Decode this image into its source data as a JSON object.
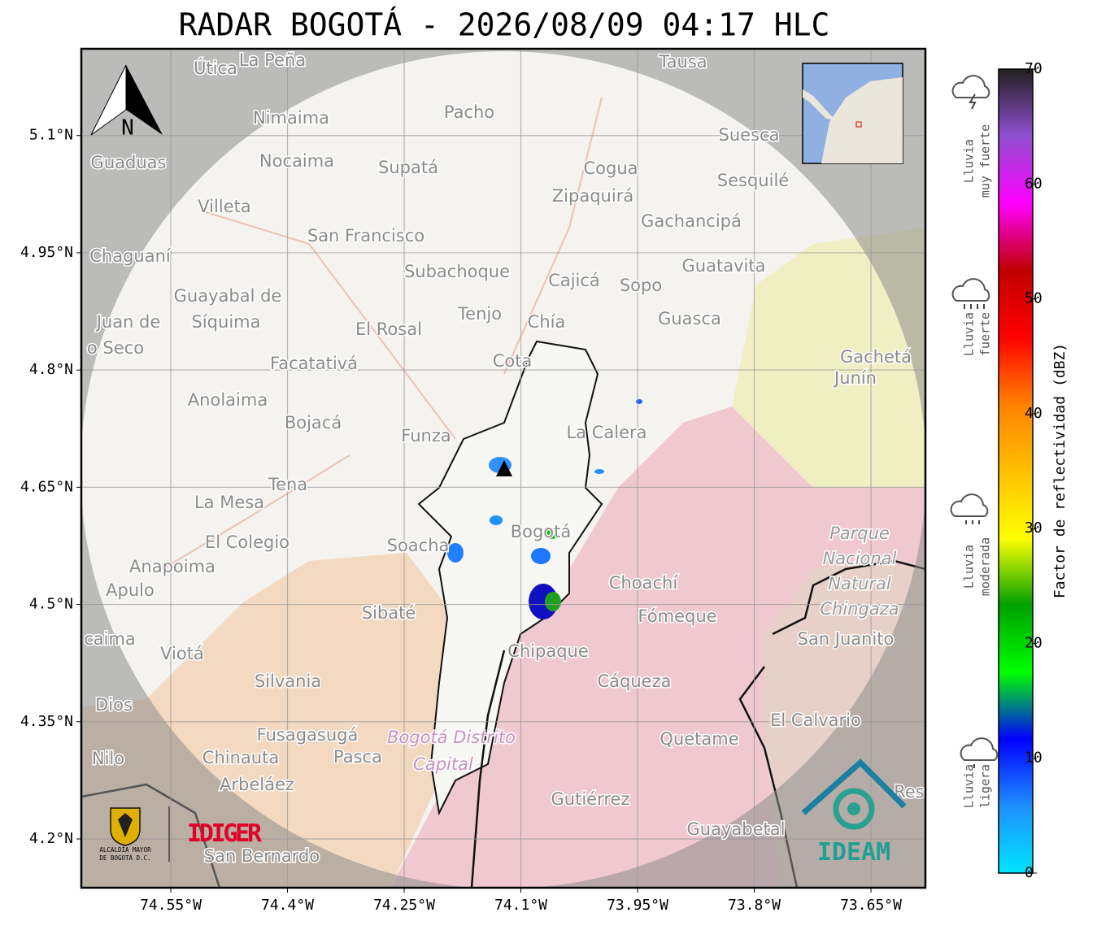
{
  "map": {
    "title": "RADAR BOGOTÁ - 2026/08/09 04:17 HLC",
    "xlim": [
      -74.665,
      -73.58
    ],
    "ylim": [
      4.1376,
      5.211
    ],
    "xticks": [
      {
        "value": -74.55,
        "label": "74.55°W"
      },
      {
        "value": -74.4,
        "label": "74.4°W"
      },
      {
        "value": -74.25,
        "label": "74.25°W"
      },
      {
        "value": -74.1,
        "label": "74.1°W"
      },
      {
        "value": -73.95,
        "label": "73.95°W"
      },
      {
        "value": -73.8,
        "label": "73.8°W"
      },
      {
        "value": -73.65,
        "label": "73.65°W"
      }
    ],
    "yticks": [
      {
        "value": 4.2,
        "label": "4.2°N"
      },
      {
        "value": 4.35,
        "label": "4.35°N"
      },
      {
        "value": 4.5,
        "label": "4.5°N"
      },
      {
        "value": 4.65,
        "label": "4.65°N"
      },
      {
        "value": 4.8,
        "label": "4.8°N"
      },
      {
        "value": 4.95,
        "label": "4.95°N"
      },
      {
        "value": 5.1,
        "label": "5.1°N"
      }
    ],
    "grid": true,
    "north": "N",
    "places": [
      "Útica",
      "La Peña",
      "Tausa",
      "Pacho",
      "Nimaima",
      "Guaduas",
      "Nocaima",
      "Supatá",
      "Cogua",
      "Suesca",
      "Sesquilé",
      "Zipaquirá",
      "Villeta",
      "Gachancipá",
      "San Francisco",
      "Chaguaní",
      "Guatavita",
      "Subachoque",
      "Cajicá",
      "Sopo",
      "Guayabal de",
      "Síquima",
      "Juan de",
      "o Seco",
      "Tenjo",
      "Chía",
      "Guasca",
      "El Rosal",
      "Facatativá",
      "Cota",
      "Gachetá",
      "Junín",
      "Anolaima",
      "Bojacá",
      "Funza",
      "La Calera",
      "Tena",
      "La Mesa",
      "El Colegio",
      "Soacha",
      "Bogotá",
      "Parque",
      "Nacional",
      "Natural",
      "Chingaza",
      "Anapoima",
      "Apulo",
      "Choachí",
      "Sibaté",
      "Fómeque",
      "San Juanito",
      "caima",
      "Viotá",
      "Chipaque",
      "Silvania",
      "Cáqueza",
      "Dios",
      "El Calvario",
      "Fusagasugá",
      "Bogotá Distrito",
      "Capital",
      "Quetame",
      "Nilo",
      "Chinauta",
      "Pasca",
      "Arbeláez",
      "Res",
      "Gutiérrez",
      "Guayabetal",
      "San Bernardo"
    ],
    "logos": {
      "alcaldia": [
        "ALCALDÍA MAYOR",
        "DE BOGOTÁ D.C."
      ],
      "idiger": "IDIGER",
      "ideam": "IDEAM"
    }
  },
  "colorbar": {
    "label": "Factor de reflectividad (dBZ)",
    "lim": [
      0,
      70
    ],
    "ticks": [
      0,
      10,
      20,
      30,
      40,
      50,
      60,
      70
    ],
    "colors": [
      "#00e5ff",
      "#1e90ff",
      "#0000ff",
      "#00ff00",
      "#00a000",
      "#ffff00",
      "#ffc000",
      "#ff8000",
      "#ff0000",
      "#c00000",
      "#ff00ff",
      "#9050d0",
      "#202020"
    ],
    "rain_levels": [
      [
        "Lluvia",
        "muy fuerte"
      ],
      [
        "Lluvia",
        "fuerte"
      ],
      [
        "Lluvia",
        "moderada"
      ],
      [
        "Lluvia",
        "ligera"
      ]
    ]
  }
}
